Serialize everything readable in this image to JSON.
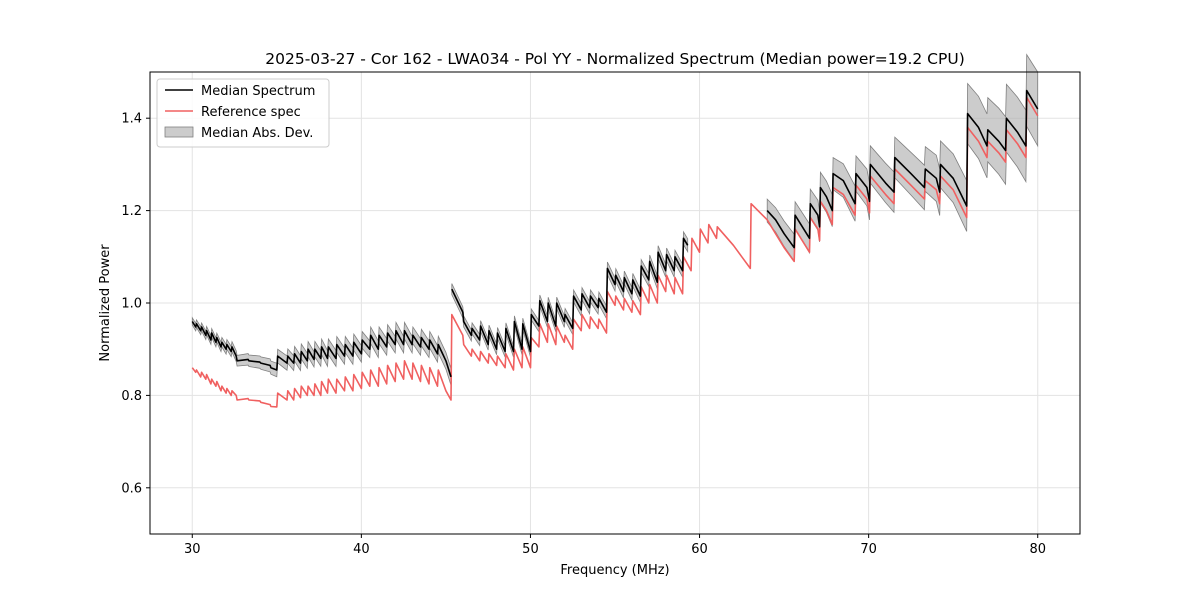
{
  "chart_data": {
    "type": "line",
    "title": "2025-03-27 - Cor 162 - LWA034 - Pol YY - Normalized Spectrum (Median power=19.2 CPU)",
    "xlabel": "Frequency (MHz)",
    "ylabel": "Normalized Power",
    "xlim": [
      27.5,
      82.5
    ],
    "ylim": [
      0.5,
      1.5
    ],
    "xticks": [
      30,
      40,
      50,
      60,
      70,
      80
    ],
    "yticks": [
      0.6,
      0.8,
      1.0,
      1.2,
      1.4
    ],
    "xtick_labels": [
      "30",
      "40",
      "50",
      "60",
      "70",
      "80"
    ],
    "ytick_labels": [
      "0.6",
      "0.8",
      "1.0",
      "1.2",
      "1.4"
    ],
    "grid": true,
    "legend_position": "top-left",
    "legend": [
      "Median Spectrum",
      "Reference spec",
      "Median Abs. Dev."
    ],
    "colors": {
      "median": "#000000",
      "reference": "#f06060",
      "mad_fill": "#b0b0b0",
      "mad_edge": "#808080",
      "grid": "#e3e3e3"
    },
    "series": [
      {
        "name": "Median Spectrum",
        "segments": [
          {
            "x": [
              30.0,
              30.2,
              30.25,
              30.5,
              30.55,
              30.8,
              30.85,
              31.1,
              31.15,
              31.4,
              31.45,
              31.7,
              31.75,
              32.0,
              32.05,
              32.3,
              32.35,
              32.6,
              32.65,
              33.3,
              33.35,
              34.0,
              34.05,
              34.6,
              34.65,
              35.0,
              35.05,
              35.6,
              35.65,
              36.0,
              36.05,
              36.4,
              36.45,
              36.8,
              36.85,
              37.2,
              37.25,
              37.6,
              37.65,
              38.0,
              38.05,
              38.5,
              38.55,
              39.0,
              39.05,
              39.5,
              39.55,
              40.0,
              40.05,
              40.5,
              40.55,
              41.0,
              41.05,
              41.5,
              41.55,
              42.0,
              42.05,
              42.5,
              42.55,
              43.0,
              43.05,
              43.5,
              43.55,
              44.0,
              44.05,
              44.5,
              44.55,
              45.0,
              45.3
            ],
            "y": [
              0.96,
              0.948,
              0.955,
              0.94,
              0.948,
              0.93,
              0.94,
              0.92,
              0.935,
              0.915,
              0.925,
              0.905,
              0.915,
              0.9,
              0.91,
              0.895,
              0.905,
              0.885,
              0.875,
              0.878,
              0.875,
              0.872,
              0.87,
              0.865,
              0.86,
              0.855,
              0.885,
              0.87,
              0.885,
              0.87,
              0.89,
              0.87,
              0.895,
              0.875,
              0.9,
              0.878,
              0.9,
              0.88,
              0.905,
              0.88,
              0.905,
              0.88,
              0.91,
              0.885,
              0.91,
              0.885,
              0.915,
              0.89,
              0.92,
              0.9,
              0.93,
              0.9,
              0.93,
              0.905,
              0.935,
              0.91,
              0.94,
              0.91,
              0.94,
              0.91,
              0.93,
              0.905,
              0.925,
              0.9,
              0.92,
              0.89,
              0.91,
              0.875,
              0.84
            ]
          },
          {
            "x": [
              45.35,
              46.0,
              46.05,
              46.5,
              46.55,
              47.0,
              47.05,
              47.5,
              47.55,
              48.0,
              48.05,
              48.5,
              48.55,
              49.0,
              49.05,
              49.5,
              49.55,
              50.0,
              50.05,
              50.5,
              50.55,
              51.0,
              51.05,
              51.5,
              51.55,
              52.0,
              52.05,
              52.5,
              52.55,
              53.0,
              53.05,
              53.5,
              53.55,
              54.0,
              54.05,
              54.5,
              54.55,
              55.0,
              55.05,
              55.5,
              55.55,
              56.0,
              56.05,
              56.5,
              56.55,
              57.0,
              57.05,
              57.5,
              57.55,
              58.0,
              58.05,
              58.5,
              58.55,
              59.0,
              59.05,
              59.3
            ],
            "y": [
              1.03,
              0.98,
              0.96,
              0.93,
              0.945,
              0.92,
              0.95,
              0.91,
              0.94,
              0.9,
              0.935,
              0.895,
              0.945,
              0.895,
              0.96,
              0.9,
              0.955,
              0.895,
              0.975,
              0.95,
              1.005,
              0.96,
              1.0,
              0.95,
              1.0,
              0.96,
              0.975,
              0.945,
              1.015,
              0.985,
              1.02,
              0.99,
              1.015,
              0.99,
              1.01,
              0.98,
              1.075,
              1.04,
              1.06,
              1.025,
              1.055,
              1.02,
              1.05,
              1.015,
              1.08,
              1.05,
              1.09,
              1.045,
              1.11,
              1.07,
              1.105,
              1.07,
              1.1,
              1.07,
              1.14,
              1.125
            ]
          },
          {
            "x": [
              64.0,
              64.5,
              65.0,
              65.5,
              65.6,
              65.65,
              66.5,
              66.55,
              67.0,
              67.1,
              67.15,
              67.5,
              67.85,
              67.9,
              68.5,
              69.2,
              69.25,
              69.9,
              70.05,
              70.1,
              71.0,
              71.5,
              71.55,
              72.5,
              73.3,
              73.35,
              74.0,
              74.2,
              74.25,
              75.0,
              75.8,
              75.85,
              76.5,
              77.0,
              77.05,
              77.7,
              78.1,
              78.15,
              78.8,
              79.3,
              79.35,
              80.0
            ],
            "y": [
              1.2,
              1.18,
              1.15,
              1.125,
              1.12,
              1.19,
              1.14,
              1.215,
              1.19,
              1.165,
              1.25,
              1.23,
              1.2,
              1.28,
              1.265,
              1.215,
              1.28,
              1.25,
              1.22,
              1.3,
              1.26,
              1.24,
              1.315,
              1.28,
              1.25,
              1.29,
              1.27,
              1.24,
              1.3,
              1.27,
              1.21,
              1.41,
              1.38,
              1.34,
              1.375,
              1.35,
              1.33,
              1.4,
              1.37,
              1.34,
              1.46,
              1.42
            ]
          }
        ]
      },
      {
        "name": "Reference spec",
        "x": [
          30.0,
          30.2,
          30.25,
          30.5,
          30.55,
          30.8,
          30.85,
          31.1,
          31.15,
          31.4,
          31.45,
          31.7,
          31.75,
          32.0,
          32.05,
          32.3,
          32.35,
          32.6,
          32.65,
          33.3,
          33.35,
          34.0,
          34.05,
          34.6,
          34.65,
          35.0,
          35.05,
          35.6,
          35.65,
          36.0,
          36.05,
          36.4,
          36.45,
          36.8,
          36.85,
          37.2,
          37.25,
          37.6,
          37.65,
          38.0,
          38.05,
          38.5,
          38.55,
          39.0,
          39.05,
          39.5,
          39.55,
          40.0,
          40.05,
          40.5,
          40.55,
          41.0,
          41.05,
          41.5,
          41.55,
          42.0,
          42.05,
          42.5,
          42.55,
          43.0,
          43.05,
          43.5,
          43.55,
          44.0,
          44.05,
          44.5,
          44.55,
          45.0,
          45.3,
          45.35,
          46.0,
          46.05,
          46.5,
          46.55,
          47.0,
          47.05,
          47.5,
          47.55,
          48.0,
          48.05,
          48.5,
          48.55,
          49.0,
          49.05,
          49.5,
          49.55,
          50.0,
          50.05,
          50.5,
          50.55,
          51.0,
          51.05,
          51.5,
          51.55,
          52.0,
          52.05,
          52.5,
          52.55,
          53.0,
          53.05,
          53.5,
          53.55,
          54.0,
          54.05,
          54.5,
          54.55,
          55.0,
          55.05,
          55.5,
          55.55,
          56.0,
          56.05,
          56.5,
          56.55,
          57.0,
          57.05,
          57.5,
          57.55,
          58.0,
          58.05,
          58.5,
          58.55,
          59.0,
          59.05,
          59.5,
          59.55,
          60.0,
          60.05,
          60.5,
          60.55,
          61.0,
          61.05,
          62.0,
          62.5,
          63.0,
          63.05,
          64.0,
          64.5,
          65.0,
          65.5,
          65.6,
          65.65,
          66.5,
          66.55,
          67.0,
          67.1,
          67.15,
          67.5,
          67.85,
          67.9,
          68.5,
          69.2,
          69.25,
          69.9,
          70.05,
          70.1,
          71.0,
          71.5,
          71.55,
          72.5,
          73.3,
          73.35,
          74.0,
          74.2,
          74.25,
          75.0,
          75.8,
          75.85,
          76.5,
          77.0,
          77.05,
          77.7,
          78.1,
          78.15,
          78.8,
          79.3,
          79.35,
          80.0
        ],
        "y": [
          0.86,
          0.85,
          0.855,
          0.84,
          0.85,
          0.835,
          0.845,
          0.825,
          0.835,
          0.82,
          0.83,
          0.81,
          0.82,
          0.805,
          0.815,
          0.8,
          0.81,
          0.8,
          0.79,
          0.793,
          0.79,
          0.788,
          0.785,
          0.78,
          0.776,
          0.775,
          0.805,
          0.79,
          0.81,
          0.79,
          0.815,
          0.795,
          0.82,
          0.8,
          0.82,
          0.8,
          0.825,
          0.8,
          0.83,
          0.805,
          0.835,
          0.805,
          0.835,
          0.81,
          0.84,
          0.81,
          0.845,
          0.815,
          0.85,
          0.82,
          0.855,
          0.82,
          0.86,
          0.825,
          0.865,
          0.83,
          0.87,
          0.835,
          0.875,
          0.835,
          0.87,
          0.83,
          0.865,
          0.825,
          0.86,
          0.82,
          0.855,
          0.81,
          0.79,
          0.975,
          0.93,
          0.91,
          0.885,
          0.9,
          0.875,
          0.895,
          0.87,
          0.89,
          0.865,
          0.885,
          0.86,
          0.89,
          0.855,
          0.9,
          0.86,
          0.905,
          0.86,
          0.925,
          0.905,
          0.955,
          0.915,
          0.955,
          0.91,
          0.95,
          0.915,
          0.93,
          0.9,
          0.965,
          0.94,
          0.975,
          0.945,
          0.97,
          0.945,
          0.965,
          0.935,
          1.025,
          0.995,
          1.015,
          0.985,
          1.01,
          0.98,
          1.005,
          0.975,
          1.035,
          1.0,
          1.04,
          1.0,
          1.06,
          1.025,
          1.06,
          1.02,
          1.055,
          1.02,
          1.1,
          1.07,
          1.14,
          1.11,
          1.16,
          1.13,
          1.17,
          1.14,
          1.165,
          1.125,
          1.1,
          1.075,
          1.215,
          1.18,
          1.15,
          1.12,
          1.095,
          1.09,
          1.16,
          1.11,
          1.185,
          1.16,
          1.135,
          1.22,
          1.2,
          1.17,
          1.25,
          1.235,
          1.19,
          1.255,
          1.225,
          1.195,
          1.275,
          1.235,
          1.215,
          1.29,
          1.255,
          1.225,
          1.265,
          1.245,
          1.215,
          1.275,
          1.245,
          1.185,
          1.38,
          1.35,
          1.315,
          1.35,
          1.325,
          1.305,
          1.375,
          1.345,
          1.315,
          1.445,
          1.405
        ]
      },
      {
        "name": "Median Abs. Dev.",
        "type": "band",
        "note": "band drawn as median ± deviation over the same segments as Median Spectrum",
        "deviation": [
          {
            "x": [
              30.0,
              33.0,
              36.0,
              40.0,
              43.0,
              45.3
            ],
            "dev": [
              0.008,
              0.012,
              0.016,
              0.018,
              0.018,
              0.018
            ]
          },
          {
            "x": [
              45.35,
              50.0,
              55.0,
              59.3
            ],
            "dev": [
              0.012,
              0.012,
              0.014,
              0.014
            ]
          },
          {
            "x": [
              64.0,
              66.0,
              68.0,
              70.0,
              72.0,
              74.0,
              75.8,
              75.85,
              80.0
            ],
            "dev": [
              0.025,
              0.03,
              0.035,
              0.04,
              0.045,
              0.05,
              0.055,
              0.065,
              0.08
            ]
          }
        ]
      }
    ]
  }
}
